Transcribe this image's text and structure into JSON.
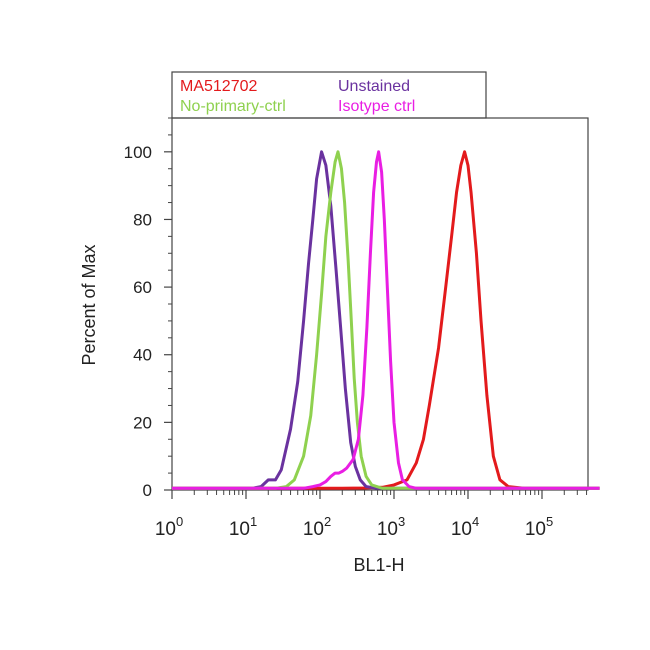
{
  "chart_data": {
    "type": "line",
    "title": "",
    "xlabel": "BL1-H",
    "ylabel": "Percent of Max",
    "x_scale": "log",
    "xlim": [
      1,
      600000
    ],
    "ylim": [
      0,
      110
    ],
    "x_ticks": [
      {
        "value": 1,
        "base": "10",
        "exp": "0"
      },
      {
        "value": 10,
        "base": "10",
        "exp": "1"
      },
      {
        "value": 100,
        "base": "10",
        "exp": "2"
      },
      {
        "value": 1000,
        "base": "10",
        "exp": "3"
      },
      {
        "value": 10000,
        "base": "10",
        "exp": "4"
      },
      {
        "value": 100000,
        "base": "10",
        "exp": "5"
      }
    ],
    "y_ticks": [
      0,
      20,
      40,
      60,
      80,
      100
    ],
    "grid": false,
    "legend_position": "top-left",
    "series": [
      {
        "name": "MA512702",
        "color": "#e31a1c",
        "points": [
          [
            1,
            0.5
          ],
          [
            200,
            0.5
          ],
          [
            400,
            0.6
          ],
          [
            700,
            0.8
          ],
          [
            1000,
            1.5
          ],
          [
            1500,
            3
          ],
          [
            2000,
            8
          ],
          [
            2500,
            15
          ],
          [
            3000,
            25
          ],
          [
            4000,
            42
          ],
          [
            5000,
            60
          ],
          [
            6000,
            75
          ],
          [
            7000,
            88
          ],
          [
            8000,
            96
          ],
          [
            9000,
            100
          ],
          [
            10000,
            96
          ],
          [
            11000,
            88
          ],
          [
            13000,
            70
          ],
          [
            15000,
            50
          ],
          [
            18000,
            28
          ],
          [
            22000,
            10
          ],
          [
            27000,
            3
          ],
          [
            35000,
            1
          ],
          [
            60000,
            0.5
          ],
          [
            600000,
            0.5
          ]
        ]
      },
      {
        "name": "Unstained",
        "color": "#6a329f",
        "points": [
          [
            1,
            0.5
          ],
          [
            12,
            0.5
          ],
          [
            16,
            1
          ],
          [
            20,
            3
          ],
          [
            25,
            3
          ],
          [
            30,
            6
          ],
          [
            40,
            18
          ],
          [
            50,
            32
          ],
          [
            60,
            50
          ],
          [
            70,
            67
          ],
          [
            80,
            80
          ],
          [
            90,
            92
          ],
          [
            105,
            100
          ],
          [
            120,
            96
          ],
          [
            140,
            84
          ],
          [
            165,
            65
          ],
          [
            190,
            48
          ],
          [
            220,
            30
          ],
          [
            260,
            14
          ],
          [
            300,
            7
          ],
          [
            350,
            3
          ],
          [
            420,
            1
          ],
          [
            600,
            0.5
          ],
          [
            600000,
            0.5
          ]
        ]
      },
      {
        "name": "No-primary-ctrl",
        "color": "#8fd14f",
        "points": [
          [
            1,
            0.5
          ],
          [
            25,
            0.5
          ],
          [
            35,
            1
          ],
          [
            45,
            3
          ],
          [
            60,
            10
          ],
          [
            75,
            22
          ],
          [
            90,
            40
          ],
          [
            105,
            58
          ],
          [
            120,
            75
          ],
          [
            140,
            88
          ],
          [
            160,
            97
          ],
          [
            175,
            100
          ],
          [
            195,
            95
          ],
          [
            215,
            85
          ],
          [
            240,
            68
          ],
          [
            265,
            50
          ],
          [
            290,
            33
          ],
          [
            320,
            20
          ],
          [
            360,
            10
          ],
          [
            420,
            4
          ],
          [
            500,
            1.5
          ],
          [
            700,
            0.5
          ],
          [
            600000,
            0.5
          ]
        ]
      },
      {
        "name": "Isotype ctrl",
        "color": "#e91ee3",
        "points": [
          [
            1,
            0.5
          ],
          [
            60,
            0.5
          ],
          [
            80,
            1
          ],
          [
            100,
            1.5
          ],
          [
            120,
            2.5
          ],
          [
            140,
            4
          ],
          [
            160,
            5
          ],
          [
            180,
            5
          ],
          [
            200,
            5.5
          ],
          [
            230,
            6.5
          ],
          [
            280,
            9
          ],
          [
            330,
            15
          ],
          [
            380,
            28
          ],
          [
            430,
            48
          ],
          [
            480,
            70
          ],
          [
            530,
            88
          ],
          [
            580,
            97
          ],
          [
            620,
            100
          ],
          [
            680,
            94
          ],
          [
            740,
            80
          ],
          [
            820,
            58
          ],
          [
            900,
            38
          ],
          [
            1000,
            20
          ],
          [
            1150,
            8
          ],
          [
            1300,
            3
          ],
          [
            1600,
            1
          ],
          [
            2000,
            0.5
          ],
          [
            600000,
            0.5
          ]
        ]
      }
    ],
    "legend": {
      "rows": [
        [
          {
            "label": "MA512702",
            "color": "#e31a1c"
          },
          {
            "label": "Unstained",
            "color": "#6a329f"
          }
        ],
        [
          {
            "label": "No-primary-ctrl",
            "color": "#8fd14f"
          },
          {
            "label": "Isotype ctrl",
            "color": "#e91ee3"
          }
        ]
      ]
    }
  }
}
